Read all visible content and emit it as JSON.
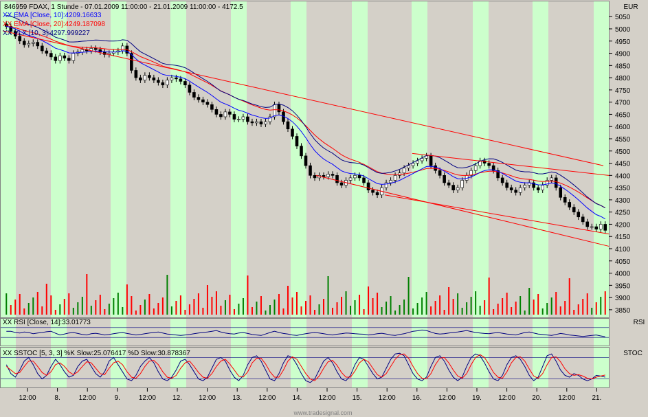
{
  "header": {
    "title": "846959  FDAX, 1 Stunde - 07.01.2009 11:00:00 - 21.01.2009 11:00:00 - 4172.5",
    "ema10": "XX EMA [Close, 10]:4209.16633",
    "ema20": "XX EMA [Close, 20]:4249.187098",
    "vlx": "XX VLX [10, 3]:4297.999227",
    "currency": "EUR"
  },
  "rsi_panel": {
    "title": "XX RSI [Close, 14]:33.01773",
    "tag": "RSI"
  },
  "stoch_panel": {
    "title": "XX SSTOC [5, 3, 3] %K Slow:25.076417 %D Slow:30.878367",
    "tag": "STOC"
  },
  "watermark": "www.tradesignal.com",
  "colors": {
    "ema10": "#0000ff",
    "ema20": "#ff0000",
    "vlx": "#000080",
    "trend": "#ff0000",
    "day_band": "#ccffcc",
    "vol_up": "#008000",
    "vol_down": "#ff0000"
  },
  "chart_data": {
    "type": "candlestick",
    "x_ticks": [
      "12:00",
      "8.",
      "12:00",
      "9.",
      "12:00",
      "12.",
      "12:00",
      "13.",
      "12:00",
      "14.",
      "12:00",
      "15.",
      "12:00",
      "16.",
      "12:00",
      "19.",
      "12:00",
      "20.",
      "12:00",
      "21."
    ],
    "y_ticks": [
      5050,
      5000,
      4950,
      4900,
      4850,
      4800,
      4750,
      4700,
      4650,
      4600,
      4550,
      4500,
      4450,
      4400,
      4350,
      4300,
      4250,
      4200,
      4150,
      4100,
      4050,
      4000,
      3950,
      3900,
      3850
    ],
    "ylim": [
      3830,
      5090
    ],
    "close": [
      5010,
      4990,
      4970,
      4950,
      4935,
      4940,
      4945,
      4930,
      4910,
      4900,
      4885,
      4870,
      4890,
      4880,
      4870,
      4900,
      4905,
      4915,
      4910,
      4920,
      4915,
      4905,
      4895,
      4900,
      4905,
      4910,
      4930,
      4900,
      4830,
      4800,
      4790,
      4810,
      4800,
      4790,
      4780,
      4770,
      4790,
      4800,
      4795,
      4785,
      4770,
      4740,
      4720,
      4710,
      4700,
      4690,
      4670,
      4650,
      4640,
      4660,
      4650,
      4630,
      4630,
      4640,
      4620,
      4615,
      4620,
      4610,
      4620,
      4640,
      4690,
      4660,
      4620,
      4590,
      4560,
      4520,
      4480,
      4440,
      4400,
      4390,
      4400,
      4395,
      4405,
      4400,
      4370,
      4360,
      4380,
      4390,
      4400,
      4390,
      4370,
      4340,
      4330,
      4320,
      4350,
      4370,
      4380,
      4400,
      4410,
      4430,
      4440,
      4450,
      4460,
      4470,
      4480,
      4440,
      4420,
      4400,
      4370,
      4360,
      4340,
      4350,
      4380,
      4400,
      4420,
      4440,
      4460,
      4450,
      4440,
      4420,
      4390,
      4370,
      4350,
      4340,
      4330,
      4350,
      4360,
      4370,
      4350,
      4340,
      4360,
      4380,
      4390,
      4350,
      4310,
      4290,
      4270,
      4250,
      4230,
      4210,
      4190,
      4190,
      4180,
      4200,
      4175
    ],
    "volume_up_ratio_note": "",
    "rsi": [
      55,
      55,
      50,
      48,
      52,
      50,
      45,
      48,
      50,
      53,
      55,
      47,
      40,
      44,
      48,
      50,
      46,
      42,
      40,
      45,
      47,
      44,
      40,
      42,
      45,
      48,
      50,
      46,
      43,
      40,
      42,
      45,
      48,
      50,
      52,
      48,
      44,
      42,
      40,
      38,
      40,
      42,
      45,
      48,
      50,
      52,
      55,
      58,
      52,
      48,
      45,
      44,
      48,
      50,
      46,
      42,
      40,
      38,
      44,
      50,
      55,
      50,
      46,
      44,
      40,
      38,
      42,
      45,
      48,
      50,
      48,
      45,
      42,
      40,
      43,
      45,
      48,
      47,
      45,
      44,
      43,
      40,
      42,
      45,
      47,
      44,
      40,
      38,
      42,
      45,
      50,
      55,
      57,
      60,
      58,
      52,
      46,
      44,
      45,
      48,
      50,
      52,
      55,
      58,
      54,
      50,
      48,
      46,
      45,
      48,
      50,
      47,
      44,
      42,
      40,
      45,
      50,
      52,
      48,
      44,
      42,
      40,
      38,
      42,
      46,
      44,
      40,
      38,
      36,
      34,
      36,
      38,
      40,
      36,
      33
    ],
    "stoch_k": [
      60,
      35,
      25,
      45,
      70,
      80,
      60,
      35,
      20,
      30,
      55,
      75,
      60,
      40,
      25,
      30,
      55,
      70,
      75,
      55,
      35,
      25,
      40,
      70,
      80,
      60,
      40,
      20,
      15,
      30,
      55,
      70,
      80,
      65,
      40,
      20,
      15,
      25,
      45,
      70,
      75,
      60,
      40,
      20,
      15,
      25,
      50,
      75,
      80,
      70,
      45,
      25,
      15,
      30,
      60,
      80,
      85,
      70,
      45,
      20,
      15,
      35,
      65,
      85,
      80,
      60,
      35,
      15,
      10,
      20,
      45,
      70,
      80,
      65,
      40,
      20,
      15,
      30,
      60,
      80,
      75,
      55,
      35,
      20,
      25,
      50,
      75,
      90,
      92,
      85,
      60,
      35,
      20,
      15,
      25,
      55,
      80,
      85,
      70,
      45,
      25,
      15,
      25,
      55,
      80,
      90,
      85,
      65,
      40,
      20,
      15,
      30,
      60,
      80,
      85,
      75,
      55,
      30,
      15,
      25,
      55,
      85,
      90,
      70,
      45,
      30,
      25,
      35,
      30,
      20,
      15,
      20,
      30,
      28,
      25
    ],
    "stoch_d": [
      55,
      45,
      35,
      38,
      55,
      70,
      70,
      55,
      38,
      30,
      40,
      60,
      65,
      55,
      40,
      32,
      40,
      55,
      68,
      65,
      50,
      35,
      32,
      50,
      65,
      70,
      60,
      40,
      25,
      22,
      35,
      55,
      70,
      72,
      60,
      40,
      25,
      22,
      30,
      50,
      65,
      70,
      55,
      38,
      25,
      22,
      35,
      55,
      70,
      75,
      62,
      45,
      28,
      25,
      40,
      65,
      78,
      78,
      62,
      40,
      25,
      25,
      45,
      70,
      82,
      75,
      55,
      35,
      20,
      15,
      28,
      50,
      68,
      72,
      58,
      38,
      25,
      25,
      42,
      65,
      75,
      68,
      50,
      32,
      25,
      35,
      55,
      75,
      88,
      90,
      78,
      55,
      35,
      22,
      20,
      35,
      60,
      78,
      80,
      65,
      45,
      28,
      22,
      35,
      60,
      80,
      88,
      80,
      60,
      38,
      25,
      22,
      40,
      65,
      80,
      82,
      70,
      48,
      28,
      22,
      35,
      60,
      80,
      82,
      68,
      48,
      35,
      30,
      32,
      28,
      22,
      20,
      25,
      28,
      31
    ]
  }
}
